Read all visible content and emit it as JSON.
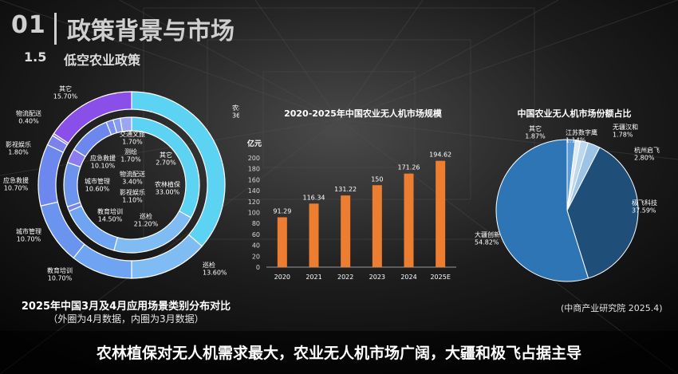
{
  "header": {
    "section_number": "01",
    "section_title": "政策背景与市场",
    "subsection_number": "1.5",
    "subsection_title": "低空农业政策"
  },
  "colors": {
    "orange": "#ed7d31",
    "pie_blue": "#2e75b6"
  },
  "chart_data": [
    {
      "type": "pie",
      "subtype": "double-donut",
      "caption": "2025年中国3月及4月应用场景类别分布对比",
      "caption_note": "（外圈为4月数据，内圈为3月数据）",
      "series": [
        {
          "name": "外圈为4月数据",
          "slices": [
            {
              "label": "农林植保",
              "value": 36.4,
              "display": "36.40%",
              "color": "#5dd3f4"
            },
            {
              "label": "巡检",
              "value": 13.6,
              "display": "13.60%",
              "color": "#7fbcf3"
            },
            {
              "label": "教育培训",
              "value": 10.7,
              "display": "10.70%",
              "color": "#6ea4f1"
            },
            {
              "label": "城市管理",
              "value": 10.7,
              "display": "10.70%",
              "color": "#6b94ef"
            },
            {
              "label": "应急救援",
              "value": 10.7,
              "display": "10.70%",
              "color": "#6c88ee"
            },
            {
              "label": "影视娱乐",
              "value": 1.8,
              "display": "1.80%",
              "color": "#7b82ee"
            },
            {
              "label": "物流配送",
              "value": 0.4,
              "display": "0.40%",
              "color": "#8c7cef"
            },
            {
              "label": "其它",
              "value": 15.7,
              "display": "15.70%",
              "color": "#8b4fe9"
            }
          ]
        },
        {
          "name": "内圈为3月数据",
          "slices": [
            {
              "label": "农林植保",
              "value": 33.0,
              "display": "33.00%",
              "color": "#5dd3f4"
            },
            {
              "label": "巡检",
              "value": 21.2,
              "display": "21.20%",
              "color": "#7fbcf3"
            },
            {
              "label": "教育培训",
              "value": 14.5,
              "display": "14.50%",
              "color": "#6ea4f1"
            },
            {
              "label": "影视娱乐",
              "value": 1.1,
              "display": "1.10%",
              "color": "#7b82ee"
            },
            {
              "label": "城市管理",
              "value": 10.6,
              "display": "10.60%",
              "color": "#6b94ef"
            },
            {
              "label": "物流配送",
              "value": 3.4,
              "display": "3.40%",
              "color": "#8c7cef"
            },
            {
              "label": "应急救援",
              "value": 10.1,
              "display": "10.10%",
              "color": "#6c88ee"
            },
            {
              "label": "测绘",
              "value": 1.7,
              "display": "1.70%",
              "color": "#7d8ff0"
            },
            {
              "label": "交通文旅",
              "value": 1.7,
              "display": "1.70%",
              "color": "#849cf1"
            },
            {
              "label": "其它",
              "value": 2.7,
              "display": "2.70%",
              "color": "#9aa6f2"
            }
          ]
        }
      ]
    },
    {
      "type": "bar",
      "title": "2020-2025年中国农业无人机市场规模",
      "ylabel": "亿元",
      "categories": [
        "2020",
        "2021",
        "2022",
        "2023",
        "2024",
        "2025E"
      ],
      "values": [
        91.29,
        116.34,
        131.22,
        150,
        171.26,
        194.62
      ],
      "value_labels": [
        "91.29",
        "116.34",
        "131.22",
        "150",
        "171.26",
        "194.62"
      ],
      "ylim": [
        0,
        200
      ],
      "yticks": [
        "0",
        "20",
        "40",
        "60",
        "80",
        "100",
        "120",
        "140",
        "160",
        "180",
        "200"
      ],
      "grid": false,
      "color": "#ed7d31"
    },
    {
      "type": "pie",
      "title": "中国农业无人机市场份额占比",
      "slices": [
        {
          "label": "大疆创新",
          "value": 54.82,
          "display": "54.82%",
          "color": "#2e75b6"
        },
        {
          "label": "极飞科技",
          "value": 37.59,
          "display": "37.59%",
          "color": "#1f4e79"
        },
        {
          "label": "杭州启飞",
          "value": 2.8,
          "display": "2.80%",
          "color": "#9dc3e6"
        },
        {
          "label": "无疆汉和",
          "value": 1.78,
          "display": "1.78%",
          "color": "#bdd7ee"
        },
        {
          "label": "江苏数字鹰",
          "value": 1.14,
          "display": "1.14%",
          "color": "#deebf7"
        },
        {
          "label": "其它",
          "value": 1.87,
          "display": "1.87%",
          "color": "#5b9bd5"
        }
      ]
    }
  ],
  "source": "(中商产业研究院 2025.4)",
  "conclusion": "农林植保对无人机需求最大，农业无人机市场广阔，大疆和极飞占据主导"
}
